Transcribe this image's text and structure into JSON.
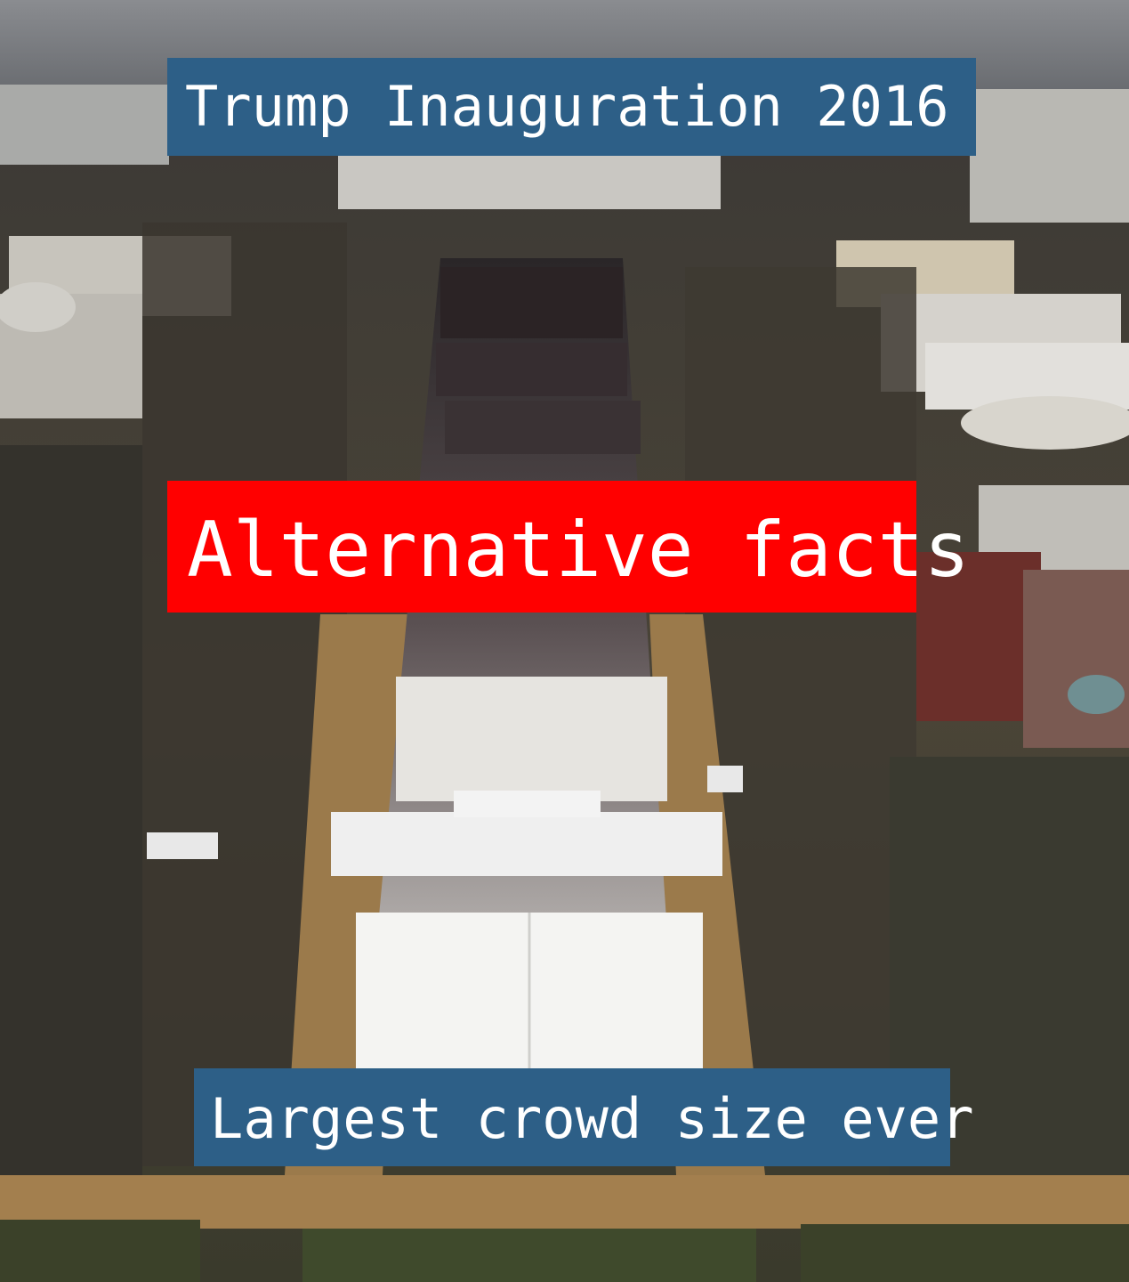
{
  "captions": {
    "title": "Trump Inauguration 2016",
    "main": "Alternative facts",
    "bottom": "Largest crowd size ever"
  },
  "colors": {
    "title_bg": "#2d5f87",
    "main_bg": "#ff0000",
    "bottom_bg": "#2d5f87",
    "text": "#ffffff"
  },
  "photo": {
    "subject": "aerial-view-national-mall"
  }
}
